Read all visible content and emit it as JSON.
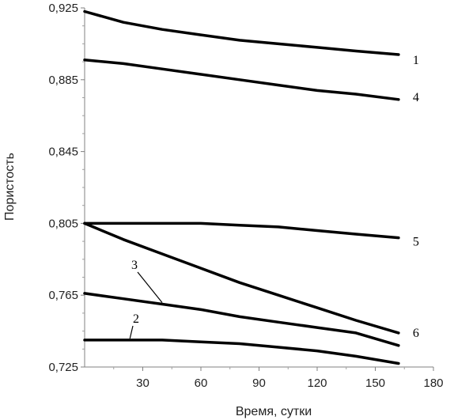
{
  "chart_data": {
    "type": "line",
    "title": "",
    "xlabel": "Время, сутки",
    "ylabel": "Пористость",
    "xlim": [
      0,
      180
    ],
    "ylim": [
      0.725,
      0.925
    ],
    "x_ticks": [
      30,
      60,
      90,
      120,
      150,
      180
    ],
    "x_tick_labels": [
      "30",
      "60",
      "90",
      "120",
      "150",
      "180"
    ],
    "y_ticks": [
      0.725,
      0.765,
      0.805,
      0.845,
      0.885,
      0.925
    ],
    "y_tick_labels": [
      "0,725",
      "0,765",
      "0,805",
      "0,845",
      "0,885",
      "0,925"
    ],
    "grid": false,
    "series": [
      {
        "name": "1",
        "x": [
          0,
          20,
          40,
          60,
          80,
          100,
          120,
          140,
          162
        ],
        "y": [
          0.923,
          0.917,
          0.913,
          0.91,
          0.907,
          0.905,
          0.903,
          0.901,
          0.899
        ]
      },
      {
        "name": "4",
        "x": [
          0,
          20,
          40,
          60,
          80,
          100,
          120,
          140,
          162
        ],
        "y": [
          0.896,
          0.894,
          0.891,
          0.888,
          0.885,
          0.882,
          0.879,
          0.877,
          0.874
        ]
      },
      {
        "name": "5",
        "x": [
          0,
          20,
          40,
          60,
          80,
          100,
          120,
          140,
          162
        ],
        "y": [
          0.805,
          0.805,
          0.805,
          0.805,
          0.804,
          0.803,
          0.801,
          0.799,
          0.797
        ]
      },
      {
        "name": "6",
        "x": [
          0,
          20,
          40,
          60,
          80,
          100,
          120,
          140,
          162
        ],
        "y": [
          0.805,
          0.796,
          0.788,
          0.78,
          0.772,
          0.765,
          0.758,
          0.751,
          0.744
        ]
      },
      {
        "name": "3",
        "x": [
          0,
          20,
          40,
          60,
          80,
          100,
          120,
          140,
          162
        ],
        "y": [
          0.766,
          0.763,
          0.76,
          0.757,
          0.753,
          0.75,
          0.747,
          0.744,
          0.737
        ]
      },
      {
        "name": "2",
        "x": [
          0,
          20,
          40,
          60,
          80,
          100,
          120,
          140,
          162
        ],
        "y": [
          0.74,
          0.74,
          0.74,
          0.739,
          0.738,
          0.736,
          0.734,
          0.731,
          0.727
        ]
      }
    ]
  }
}
